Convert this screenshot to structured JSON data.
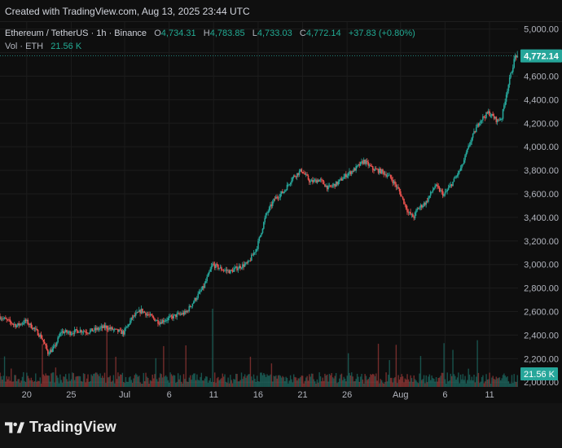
{
  "caption": "Created with TradingView.com, Aug 13, 2025 23:44 UTC",
  "legend": {
    "symbol": "Ethereum / TetherUS · 1h · Binance",
    "open_label": "O",
    "open": "4,734.31",
    "high_label": "H",
    "high": "4,783.85",
    "low_label": "L",
    "low": "4,733.03",
    "close_label": "C",
    "close": "4,772.14",
    "change": "+37.83 (+0.80%)",
    "vol_label": "Vol · ETH",
    "vol": "21.56 K"
  },
  "brand": {
    "name": "TradingView",
    "logo_icon": "tradingview-logo-icon"
  },
  "colors": {
    "up": "#26a69a",
    "down": "#ef5350",
    "price_badge": "#26a69a",
    "vol_badge": "#26a69a",
    "grid": "#1c1c1c",
    "axis_text": "#b2b5be"
  },
  "chart_data": {
    "type": "candlestick",
    "symbol": "ETH/USDT",
    "interval": "1h",
    "y_ticks": [
      2000,
      2200,
      2400,
      2600,
      2800,
      3000,
      3200,
      3400,
      3600,
      3800,
      4000,
      4200,
      4400,
      4600,
      4800,
      5000
    ],
    "y_tick_labels": [
      "2,000.00",
      "2,200.00",
      "2,400.00",
      "2,600.00",
      "2,800.00",
      "3,000.00",
      "3,200.00",
      "3,400.00",
      "3,600.00",
      "3,800.00",
      "4,000.00",
      "4,200.00",
      "4,400.00",
      "4,600.00",
      "4,800.00",
      "5,000.00"
    ],
    "ylim": [
      1960,
      5060
    ],
    "x_ticks": [
      {
        "label": "20",
        "day": 0
      },
      {
        "label": "25",
        "day": 5
      },
      {
        "label": "Jul",
        "day": 11
      },
      {
        "label": "6",
        "day": 16
      },
      {
        "label": "11",
        "day": 21
      },
      {
        "label": "16",
        "day": 26
      },
      {
        "label": "21",
        "day": 31
      },
      {
        "label": "26",
        "day": 36
      },
      {
        "label": "Aug",
        "day": 42
      },
      {
        "label": "6",
        "day": 47
      },
      {
        "label": "11",
        "day": 52
      }
    ],
    "xlim_days": [
      -3,
      55.2
    ],
    "last_price": 4772.14,
    "last_price_label": "4,772.14",
    "last_volume_label": "21.56 K",
    "price_path": [
      [
        -3,
        2560
      ],
      [
        -2,
        2520
      ],
      [
        -1,
        2480
      ],
      [
        0,
        2520
      ],
      [
        1,
        2450
      ],
      [
        1.8,
        2380
      ],
      [
        2.5,
        2250
      ],
      [
        3.2,
        2290
      ],
      [
        4,
        2430
      ],
      [
        5,
        2420
      ],
      [
        6,
        2440
      ],
      [
        7,
        2430
      ],
      [
        8,
        2450
      ],
      [
        9,
        2470
      ],
      [
        10,
        2440
      ],
      [
        11,
        2420
      ],
      [
        12,
        2550
      ],
      [
        13,
        2610
      ],
      [
        14,
        2560
      ],
      [
        15,
        2510
      ],
      [
        16,
        2540
      ],
      [
        17,
        2570
      ],
      [
        18,
        2590
      ],
      [
        19,
        2700
      ],
      [
        20,
        2810
      ],
      [
        21,
        3000
      ],
      [
        22,
        2960
      ],
      [
        23,
        2940
      ],
      [
        24,
        2980
      ],
      [
        25,
        3010
      ],
      [
        26,
        3150
      ],
      [
        27,
        3420
      ],
      [
        28,
        3560
      ],
      [
        29,
        3620
      ],
      [
        30,
        3740
      ],
      [
        31,
        3800
      ],
      [
        32,
        3700
      ],
      [
        33,
        3720
      ],
      [
        34,
        3650
      ],
      [
        35,
        3690
      ],
      [
        36,
        3760
      ],
      [
        37,
        3810
      ],
      [
        38,
        3880
      ],
      [
        39,
        3810
      ],
      [
        40,
        3790
      ],
      [
        41,
        3740
      ],
      [
        42,
        3620
      ],
      [
        43,
        3440
      ],
      [
        43.6,
        3400
      ],
      [
        44,
        3470
      ],
      [
        45,
        3530
      ],
      [
        46,
        3670
      ],
      [
        47,
        3590
      ],
      [
        48,
        3700
      ],
      [
        49,
        3830
      ],
      [
        50,
        4050
      ],
      [
        51,
        4220
      ],
      [
        52,
        4290
      ],
      [
        53,
        4220
      ],
      [
        53.5,
        4250
      ],
      [
        54,
        4450
      ],
      [
        54.5,
        4610
      ],
      [
        55,
        4772
      ]
    ]
  }
}
